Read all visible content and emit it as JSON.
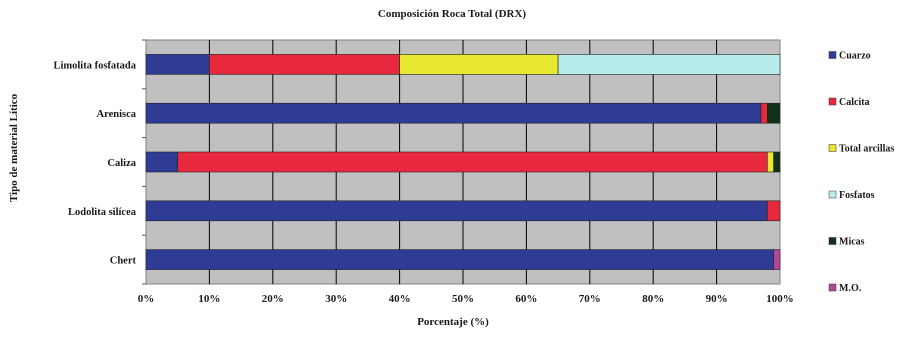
{
  "chart_data": {
    "type": "bar",
    "orientation": "horizontal",
    "stacked": true,
    "title": "Composición Roca Total (DRX)",
    "xlabel": "Porcentaje (%)",
    "ylabel": "Tipo de material Lítico",
    "xlim": [
      0,
      100
    ],
    "x_ticks": [
      "0%",
      "10%",
      "20%",
      "30%",
      "40%",
      "50%",
      "60%",
      "70%",
      "80%",
      "90%",
      "100%"
    ],
    "categories": [
      "Limolita fosfatada",
      "Arenisca",
      "Caliza",
      "Lodolita silícea",
      "Chert"
    ],
    "series": [
      {
        "name": "Cuarzo",
        "color": "#2e3c96",
        "values": [
          10,
          97,
          5,
          98,
          99
        ]
      },
      {
        "name": "Calcita",
        "color": "#e8283c",
        "values": [
          30,
          1,
          93,
          2,
          0
        ]
      },
      {
        "name": "Total arcillas",
        "color": "#e8e830",
        "values": [
          25,
          0,
          1,
          0,
          0
        ]
      },
      {
        "name": "Fosfatos",
        "color": "#b8ecec",
        "values": [
          35,
          0,
          0,
          0,
          0
        ]
      },
      {
        "name": "Micas",
        "color": "#103018",
        "values": [
          0,
          2,
          1,
          0,
          0
        ]
      },
      {
        "name": "M.O.",
        "color": "#b04898",
        "values": [
          0,
          0,
          0,
          0,
          1
        ]
      }
    ],
    "plot_background": "#c0c0c0",
    "grid": true,
    "legend_position": "right"
  }
}
